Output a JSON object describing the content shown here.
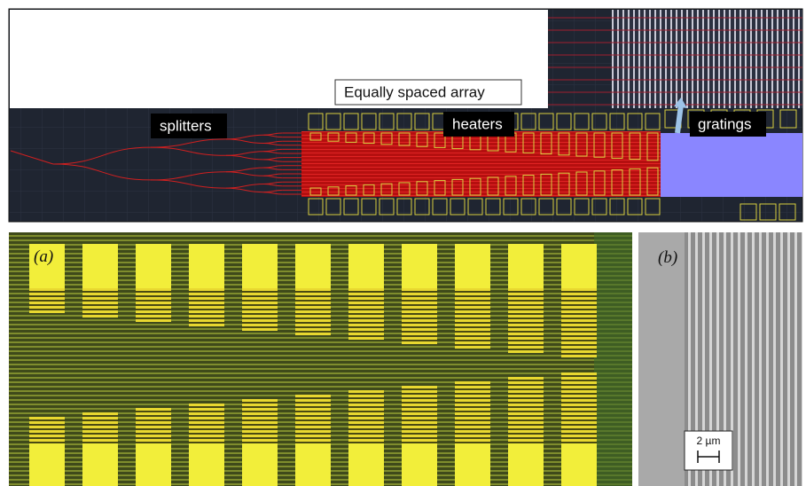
{
  "layout_panel": {
    "callout": "Equally spaced array",
    "labels": [
      "splitters",
      "heaters",
      "gratings"
    ]
  },
  "micrograph_a": {
    "label": "(a)"
  },
  "micrograph_b": {
    "label": "(b)",
    "scale_bar": "2 µm"
  }
}
